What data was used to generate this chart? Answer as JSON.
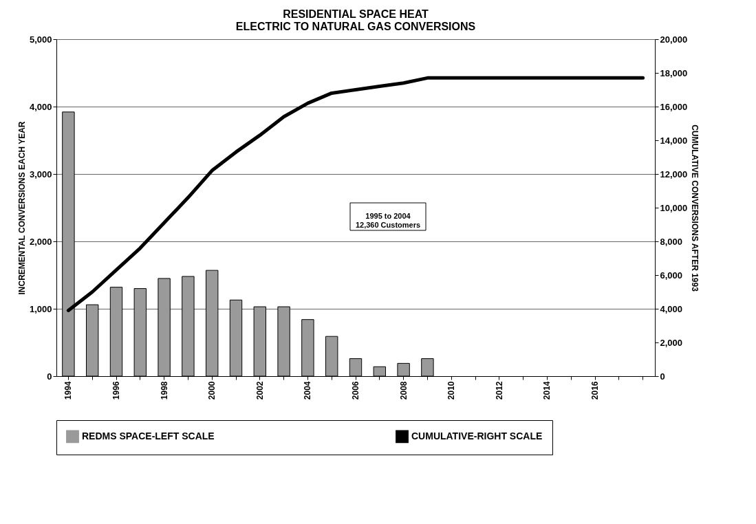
{
  "chart_data": {
    "type": "bar",
    "title": [
      "RESIDENTIAL SPACE HEAT",
      "ELECTRIC TO NATURAL GAS CONVERSIONS"
    ],
    "ylabel": "INCREMENTAL CONVERSIONS EACH YEAR",
    "y2label": "CUMULATIVE CONVERSIONS AFTER 1993",
    "categories": [
      "1994",
      null,
      "1996",
      null,
      "1998",
      null,
      "2000",
      null,
      "2002",
      null,
      "2004",
      null,
      "2006",
      null,
      "2008",
      null,
      "2010",
      null,
      "2012",
      null,
      "2014",
      null,
      "2016",
      null,
      null
    ],
    "series": [
      {
        "name": "REDMS SPACE-LEFT SCALE",
        "color": "#9a9a9a",
        "values": [
          3920,
          1060,
          1320,
          1300,
          1450,
          1480,
          1570,
          1130,
          1030,
          1030,
          840,
          590,
          260,
          140,
          190,
          260,
          null,
          null,
          null,
          null,
          null,
          null,
          null,
          null,
          null
        ]
      },
      {
        "name": "CUMULATIVE-RIGHT SCALE",
        "type": "line",
        "axis": "y2",
        "color": "#000000",
        "values": [
          3900,
          5000,
          6300,
          7600,
          9100,
          10600,
          12200,
          13300,
          14300,
          15400,
          16200,
          16800,
          17000,
          17200,
          17400,
          17700,
          17700,
          17700,
          17700,
          17700,
          17700,
          17700,
          17700,
          17700,
          17700
        ]
      }
    ],
    "ylim": [
      0,
      5000
    ],
    "yticks": [
      0,
      {
        "value": 1000,
        "label": "1,000"
      },
      {
        "value": 2000,
        "label": "2,000"
      },
      {
        "value": 3000,
        "label": "3,000"
      },
      {
        "value": 4000,
        "label": "4,000"
      },
      {
        "value": 5000,
        "label": "5,000"
      }
    ],
    "y2lim": [
      0,
      20000
    ],
    "y2ticks": [
      0,
      {
        "value": 2000,
        "label": "2,000"
      },
      {
        "value": 4000,
        "label": "4,000"
      },
      {
        "value": 6000,
        "label": "6,000"
      },
      {
        "value": 8000,
        "label": "8,000"
      },
      {
        "value": 10000,
        "label": "10,000"
      },
      {
        "value": 12000,
        "label": "12,000"
      },
      {
        "value": 14000,
        "label": "14,000"
      },
      {
        "value": 16000,
        "label": "16,000"
      },
      {
        "value": 18000,
        "label": "18,000"
      },
      {
        "value": 20000,
        "label": "20,000"
      }
    ],
    "annotations": [
      "1995 to 2004\n12,360 Customers"
    ],
    "grid": "y",
    "legend": "bottom"
  }
}
